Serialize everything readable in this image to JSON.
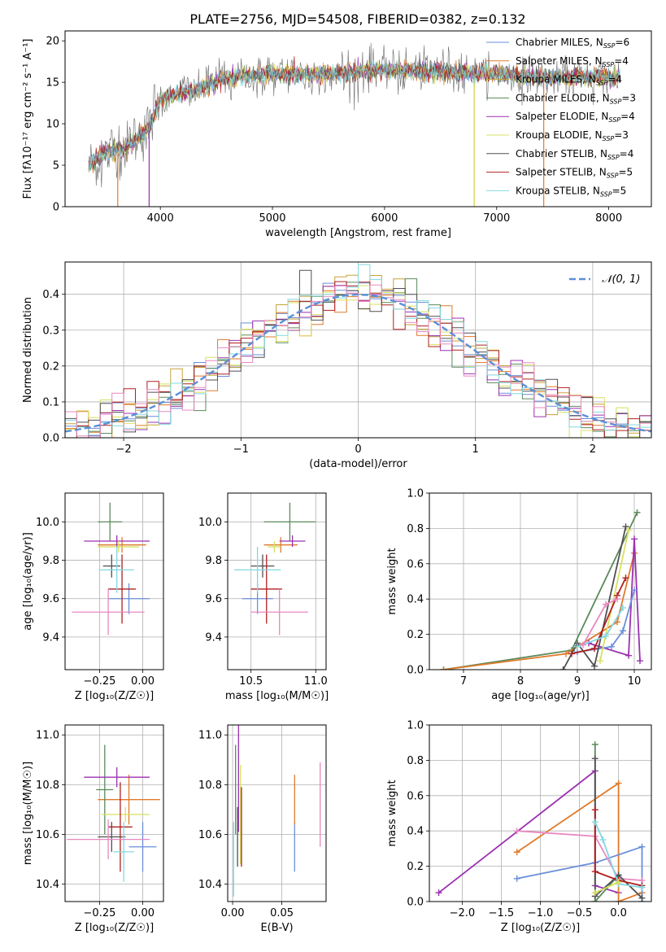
{
  "figure_title": "PLATE=2756, MJD=54508, FIBERID=0382, z=0.132",
  "palette": {
    "Chabrier MILES": "#6a8fd8",
    "Salpeter MILES": "#e07a2a",
    "Kroupa MILES": "#c8a23a",
    "Chabrier ELODIE": "#5a8a5a",
    "Salpeter ELODIE": "#9b30b0",
    "Kroupa ELODIE": "#d8e060",
    "Chabrier STELIB": "#505050",
    "Salpeter STELIB": "#b02020",
    "Kroupa STELIB": "#80d8e0",
    "pink": "#e888c0"
  },
  "chart_data": [
    {
      "id": "spectrum",
      "type": "line",
      "title": "PLATE=2756, MJD=54508, FIBERID=0382, z=0.132",
      "xlabel": "wavelength [Angstrom, rest frame]",
      "ylabel": "Flux [fλ10⁻¹⁷ erg cm⁻² s⁻¹ A⁻¹]",
      "xlim": [
        3150,
        8380
      ],
      "ylim": [
        0,
        21.2
      ],
      "xticks": [
        4000,
        5000,
        6000,
        7000,
        8000
      ],
      "yticks": [
        0,
        5,
        10,
        15,
        20
      ],
      "grid": false,
      "legend_position": "right",
      "continuum": [
        [
          3360,
          5.0
        ],
        [
          3500,
          6.5
        ],
        [
          3700,
          7.2
        ],
        [
          3900,
          9.5
        ],
        [
          4000,
          13.0
        ],
        [
          4300,
          14.0
        ],
        [
          4600,
          15.5
        ],
        [
          5000,
          16.0
        ],
        [
          5500,
          16.0
        ],
        [
          6000,
          16.5
        ],
        [
          6500,
          16.3
        ],
        [
          7000,
          16.0
        ],
        [
          7500,
          15.6
        ],
        [
          8100,
          15.7
        ]
      ],
      "legend": [
        {
          "label": "Chabrier MILES, N",
          "sub": "SSP",
          "tail": "=6"
        },
        {
          "label": "Salpeter MILES, N",
          "sub": "SSP",
          "tail": "=4"
        },
        {
          "label": "Kroupa MILES, N",
          "sub": "SSP",
          "tail": "=4"
        },
        {
          "label": "Chabrier ELODIE, N",
          "sub": "SSP",
          "tail": "=3"
        },
        {
          "label": "Salpeter ELODIE, N",
          "sub": "SSP",
          "tail": "=4"
        },
        {
          "label": "Kroupa ELODIE, N",
          "sub": "SSP",
          "tail": "=3"
        },
        {
          "label": "Chabrier STELIB, N",
          "sub": "SSP",
          "tail": "=4"
        },
        {
          "label": "Salpeter STELIB, N",
          "sub": "SSP",
          "tail": "=5"
        },
        {
          "label": "Kroupa STELIB, N",
          "sub": "SSP",
          "tail": "=5"
        }
      ]
    },
    {
      "id": "residuals",
      "type": "histogram",
      "xlabel": "(data-model)/error",
      "ylabel": "Normed distribution",
      "xlim": [
        -2.5,
        2.5
      ],
      "ylim": [
        0,
        0.49
      ],
      "xticks": [
        -2,
        -1,
        0,
        1,
        2
      ],
      "yticks": [
        0.0,
        0.1,
        0.2,
        0.3,
        0.4
      ],
      "grid": true,
      "bin_width": 0.1,
      "legend": {
        "label": "N(0,1)",
        "position": "top-right"
      }
    },
    {
      "id": "age_vs_Z",
      "type": "errorbar",
      "xlabel": "Z [log₁₀(Z/Z☉)]",
      "ylabel": "age  [log₁₀(age/yr)]",
      "xlim": [
        -0.45,
        0.12
      ],
      "ylim": [
        9.23,
        10.15
      ],
      "xticks": [
        -0.25,
        0.0
      ],
      "yticks": [
        9.4,
        9.6,
        9.8,
        10.0
      ],
      "grid": true,
      "points": [
        {
          "c": "Chabrier MILES",
          "x": -0.08,
          "y": 9.6,
          "xerr": 0.12,
          "yerr": 0.08
        },
        {
          "c": "Salpeter MILES",
          "x": -0.12,
          "y": 9.88,
          "xerr": 0.14,
          "yerr": 0.04
        },
        {
          "c": "Chabrier ELODIE",
          "x": -0.19,
          "y": 10.0,
          "xerr": 0.07,
          "yerr": 0.1
        },
        {
          "c": "Salpeter ELODIE",
          "x": -0.15,
          "y": 9.9,
          "xerr": 0.19,
          "yerr": 0.03
        },
        {
          "c": "Kroupa ELODIE",
          "x": -0.14,
          "y": 9.87,
          "xerr": 0.12,
          "yerr": 0.03
        },
        {
          "c": "Chabrier STELIB",
          "x": -0.18,
          "y": 9.77,
          "xerr": 0.05,
          "yerr": 0.06
        },
        {
          "c": "Salpeter STELIB",
          "x": -0.12,
          "y": 9.65,
          "xerr": 0.08,
          "yerr": 0.18
        },
        {
          "c": "Kroupa STELIB",
          "x": -0.15,
          "y": 9.75,
          "xerr": 0.1,
          "yerr": 0.12
        },
        {
          "c": "pink",
          "x": -0.2,
          "y": 9.53,
          "xerr": 0.21,
          "yerr": 0.12
        }
      ]
    },
    {
      "id": "age_vs_mass",
      "type": "errorbar",
      "xlabel": "mass [log₁₀(M/M☉)]",
      "ylabel": "",
      "xlim": [
        10.32,
        11.08
      ],
      "ylim": [
        9.23,
        10.15
      ],
      "xticks": [
        10.5,
        11.0
      ],
      "yticks": [
        9.4,
        9.6,
        9.8,
        10.0
      ],
      "grid": true,
      "points": [
        {
          "c": "Chabrier MILES",
          "x": 10.55,
          "y": 9.6,
          "xerr": 0.12,
          "yerr": 0.08
        },
        {
          "c": "Salpeter MILES",
          "x": 10.73,
          "y": 9.88,
          "xerr": 0.13,
          "yerr": 0.04
        },
        {
          "c": "Chabrier ELODIE",
          "x": 10.8,
          "y": 10.0,
          "xerr": 0.2,
          "yerr": 0.1
        },
        {
          "c": "Salpeter ELODIE",
          "x": 10.82,
          "y": 9.9,
          "xerr": 0.1,
          "yerr": 0.03
        },
        {
          "c": "Kroupa ELODIE",
          "x": 10.68,
          "y": 9.87,
          "xerr": 0.05,
          "yerr": 0.03
        },
        {
          "c": "Chabrier STELIB",
          "x": 10.59,
          "y": 9.77,
          "xerr": 0.09,
          "yerr": 0.06
        },
        {
          "c": "Salpeter STELIB",
          "x": 10.62,
          "y": 9.65,
          "xerr": 0.12,
          "yerr": 0.18
        },
        {
          "c": "Kroupa STELIB",
          "x": 10.55,
          "y": 9.75,
          "xerr": 0.18,
          "yerr": 0.12
        },
        {
          "c": "pink",
          "x": 10.72,
          "y": 9.53,
          "xerr": 0.22,
          "yerr": 0.12
        }
      ]
    },
    {
      "id": "massweight_vs_age",
      "type": "line",
      "xlabel": "age  [log₁₀(age/yr)]",
      "ylabel": "mass weight",
      "xlim": [
        6.4,
        10.3
      ],
      "ylim": [
        0,
        1.0
      ],
      "xticks": [
        7,
        8,
        9,
        10
      ],
      "yticks": [
        0.0,
        0.2,
        0.4,
        0.6,
        0.8,
        1.0
      ],
      "grid": true,
      "series": [
        {
          "c": "Chabrier ELODIE",
          "points": [
            [
              6.65,
              0.0
            ],
            [
              8.9,
              0.11
            ],
            [
              10.05,
              0.89
            ]
          ]
        },
        {
          "c": "Salpeter MILES",
          "points": [
            [
              6.65,
              0.0
            ],
            [
              8.8,
              0.09
            ],
            [
              9.7,
              0.27
            ],
            [
              10.0,
              0.66
            ]
          ]
        },
        {
          "c": "Salpeter ELODIE",
          "points": [
            [
              9.2,
              0.15
            ],
            [
              9.9,
              0.08
            ],
            [
              10.0,
              0.74
            ],
            [
              10.1,
              0.05
            ]
          ]
        },
        {
          "c": "Chabrier MILES",
          "points": [
            [
              9.0,
              0.1
            ],
            [
              9.6,
              0.13
            ],
            [
              9.8,
              0.22
            ],
            [
              10.0,
              0.45
            ]
          ]
        },
        {
          "c": "Kroupa ELODIE",
          "points": [
            [
              9.4,
              0.05
            ],
            [
              9.9,
              0.79
            ]
          ]
        },
        {
          "c": "Chabrier STELIB",
          "points": [
            [
              8.75,
              0.0
            ],
            [
              9.0,
              0.15
            ],
            [
              9.3,
              0.02
            ],
            [
              9.85,
              0.81
            ]
          ]
        },
        {
          "c": "Salpeter STELIB",
          "points": [
            [
              8.9,
              0.09
            ],
            [
              9.3,
              0.12
            ],
            [
              9.7,
              0.42
            ],
            [
              9.85,
              0.52
            ]
          ]
        },
        {
          "c": "Kroupa STELIB",
          "points": [
            [
              9.0,
              0.13
            ],
            [
              9.5,
              0.19
            ],
            [
              9.8,
              0.35
            ]
          ]
        },
        {
          "c": "pink",
          "points": [
            [
              9.1,
              0.14
            ],
            [
              9.5,
              0.37
            ],
            [
              9.7,
              0.4
            ]
          ]
        }
      ]
    },
    {
      "id": "mass_vs_Z",
      "type": "errorbar",
      "xlabel": "Z [log₁₀(Z/Z☉)]",
      "ylabel": "mass [log₁₀(M/M☉)]",
      "xlim": [
        -0.45,
        0.12
      ],
      "ylim": [
        10.33,
        11.04
      ],
      "xticks": [
        -0.25,
        0.0
      ],
      "yticks": [
        10.4,
        10.6,
        10.8,
        11.0
      ],
      "grid": true,
      "points": [
        {
          "c": "Chabrier MILES",
          "x": 0.0,
          "y": 10.55,
          "xerr": 0.08,
          "yerr": 0.1
        },
        {
          "c": "Salpeter MILES",
          "x": -0.08,
          "y": 10.74,
          "xerr": 0.18,
          "yerr": 0.1
        },
        {
          "c": "Chabrier ELODIE",
          "x": -0.22,
          "y": 10.78,
          "xerr": 0.05,
          "yerr": 0.18
        },
        {
          "c": "Salpeter ELODIE",
          "x": -0.15,
          "y": 10.83,
          "xerr": 0.19,
          "yerr": 0.04
        },
        {
          "c": "Kroupa ELODIE",
          "x": -0.1,
          "y": 10.68,
          "xerr": 0.14,
          "yerr": 0.03
        },
        {
          "c": "Chabrier STELIB",
          "x": -0.18,
          "y": 10.59,
          "xerr": 0.08,
          "yerr": 0.06
        },
        {
          "c": "Salpeter STELIB",
          "x": -0.13,
          "y": 10.63,
          "xerr": 0.07,
          "yerr": 0.18
        },
        {
          "c": "Kroupa STELIB",
          "x": -0.11,
          "y": 10.53,
          "xerr": 0.06,
          "yerr": 0.12
        },
        {
          "c": "pink",
          "x": -0.2,
          "y": 10.58,
          "xerr": 0.24,
          "yerr": 0.08
        }
      ]
    },
    {
      "id": "mass_vs_EBV",
      "type": "errorbar",
      "xlabel": "E(B-V)",
      "ylabel": "",
      "xlim": [
        -0.005,
        0.095
      ],
      "ylim": [
        10.33,
        11.04
      ],
      "xticks": [
        0.0,
        0.05
      ],
      "xtick_labels": [
        "0.00",
        "0.05"
      ],
      "yticks": [
        10.4,
        10.6,
        10.8,
        11.0
      ],
      "grid": true,
      "points": [
        {
          "c": "Chabrier MILES",
          "x": 0.063,
          "y": 10.55,
          "xerr": 0,
          "yerr": 0.1
        },
        {
          "c": "Salpeter MILES",
          "x": 0.063,
          "y": 10.74,
          "xerr": 0,
          "yerr": 0.1
        },
        {
          "c": "Chabrier ELODIE",
          "x": 0.003,
          "y": 10.78,
          "xerr": 0,
          "yerr": 0.18
        },
        {
          "c": "Salpeter ELODIE",
          "x": 0.006,
          "y": 10.83,
          "xerr": 0,
          "yerr": 0.22
        },
        {
          "c": "Kroupa ELODIE",
          "x": 0.008,
          "y": 10.68,
          "xerr": 0,
          "yerr": 0.2
        },
        {
          "c": "Chabrier STELIB",
          "x": 0.005,
          "y": 10.59,
          "xerr": 0,
          "yerr": 0.12
        },
        {
          "c": "Salpeter STELIB",
          "x": 0.009,
          "y": 10.63,
          "xerr": 0,
          "yerr": 0.16
        },
        {
          "c": "Kroupa STELIB",
          "x": 0.001,
          "y": 10.5,
          "xerr": 0,
          "yerr": 0.15
        },
        {
          "c": "pink",
          "x": 0.089,
          "y": 10.72,
          "xerr": 0,
          "yerr": 0.17
        }
      ]
    },
    {
      "id": "massweight_vs_Z",
      "type": "line",
      "xlabel": "Z [log₁₀(Z/Z☉)]",
      "ylabel": "mass weight",
      "xlim": [
        -2.42,
        0.42
      ],
      "ylim": [
        0,
        1.0
      ],
      "xticks": [
        -2.0,
        -1.5,
        -1.0,
        -0.5,
        0.0
      ],
      "xtick_labels": [
        "−2.0",
        "−1.5",
        "−1.0",
        "−0.5",
        "0.0"
      ],
      "yticks": [
        0.0,
        0.2,
        0.4,
        0.6,
        0.8,
        1.0
      ],
      "grid": true,
      "series": [
        {
          "c": "Salpeter ELODIE",
          "points": [
            [
              -2.3,
              0.05
            ],
            [
              -0.3,
              0.74
            ],
            [
              -0.3,
              0.09
            ],
            [
              0.0,
              0.05
            ]
          ]
        },
        {
          "c": "Salpeter MILES",
          "points": [
            [
              -1.3,
              0.28
            ],
            [
              0.0,
              0.67
            ],
            [
              0.0,
              0.0
            ],
            [
              0.3,
              0.05
            ]
          ]
        },
        {
          "c": "Chabrier MILES",
          "points": [
            [
              -1.3,
              0.13
            ],
            [
              -0.3,
              0.22
            ],
            [
              0.3,
              0.31
            ],
            [
              0.3,
              0.0
            ]
          ]
        },
        {
          "c": "pink",
          "points": [
            [
              -1.3,
              0.4
            ],
            [
              -0.3,
              0.37
            ],
            [
              0.0,
              0.13
            ],
            [
              0.3,
              0.12
            ]
          ]
        },
        {
          "c": "Chabrier ELODIE",
          "points": [
            [
              -0.3,
              0.89
            ],
            [
              -0.3,
              0.0
            ],
            [
              0.0,
              0.15
            ]
          ]
        },
        {
          "c": "Chabrier STELIB",
          "points": [
            [
              -0.3,
              0.81
            ],
            [
              -0.3,
              0.03
            ],
            [
              0.0,
              0.15
            ],
            [
              0.3,
              0.02
            ]
          ]
        },
        {
          "c": "Salpeter STELIB",
          "points": [
            [
              -0.3,
              0.52
            ],
            [
              -0.3,
              0.17
            ],
            [
              0.0,
              0.12
            ],
            [
              0.3,
              0.09
            ]
          ]
        },
        {
          "c": "Kroupa STELIB",
          "points": [
            [
              -0.3,
              0.45
            ],
            [
              -0.2,
              0.35
            ],
            [
              0.0,
              0.1
            ],
            [
              0.3,
              0.08
            ]
          ]
        },
        {
          "c": "Kroupa ELODIE",
          "points": [
            [
              -0.3,
              0.05
            ],
            [
              0.0,
              0.11
            ]
          ]
        }
      ]
    }
  ]
}
